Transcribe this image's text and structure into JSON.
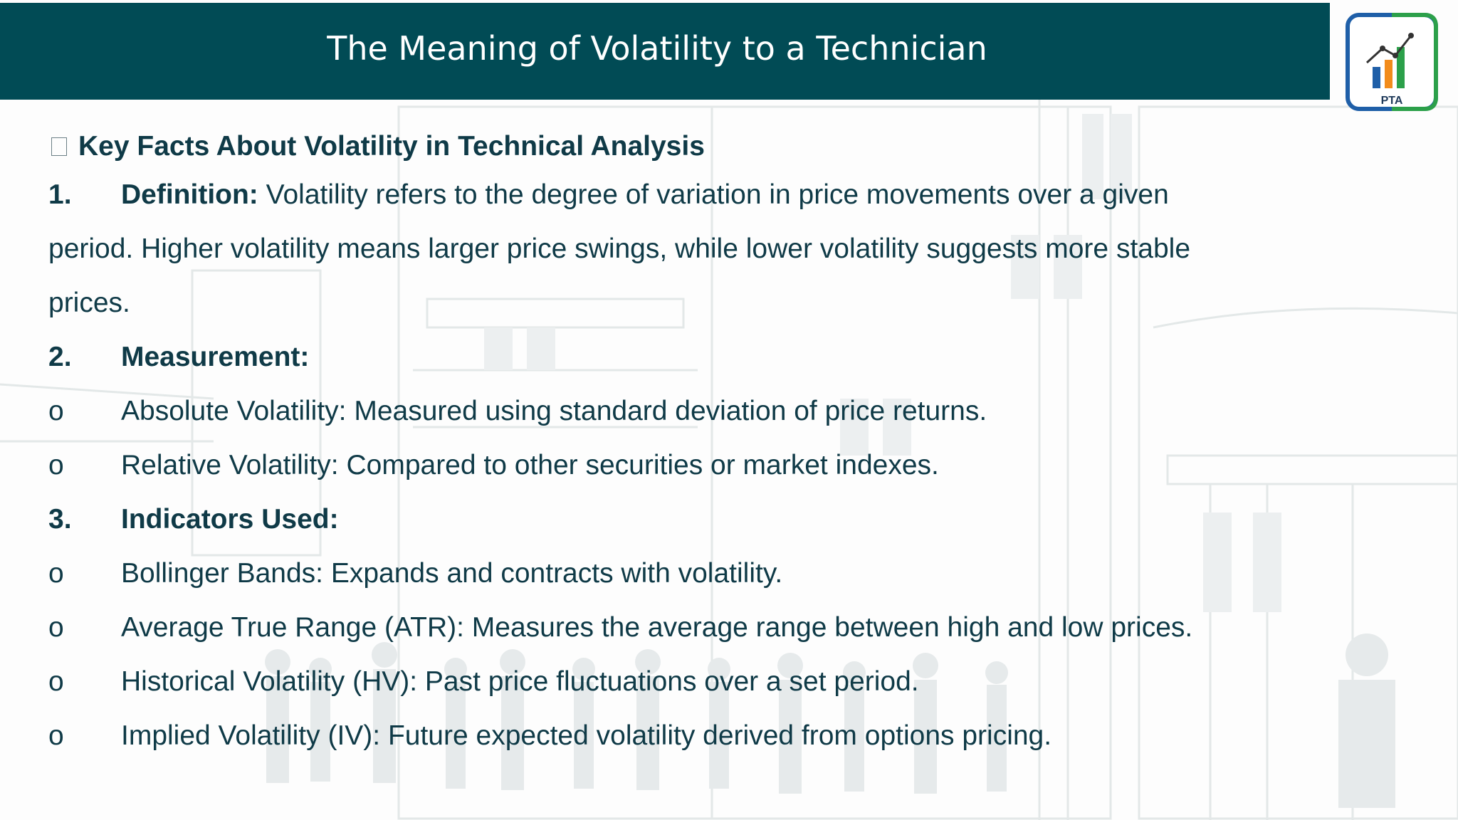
{
  "slide": {
    "title": "The Meaning of Volatility to a Technician",
    "logo_text": "PTA",
    "colors": {
      "header": "#014b55",
      "text": "#0f3a47",
      "logo_blue": "#1f5fa8",
      "logo_green": "#2ca04a",
      "logo_orange": "#f28c1c"
    }
  },
  "content": {
    "heading": "Key Facts About Volatility in Technical Analysis",
    "sections": [
      {
        "number": "1.",
        "label": "Definition:",
        "text_line1": " Volatility refers to the degree of variation in price movements over a given",
        "text_line2": "period. Higher volatility means larger price swings, while lower volatility suggests more stable",
        "text_line3": "prices."
      },
      {
        "number": "2.",
        "label": "Measurement:",
        "items": [
          {
            "marker": "o",
            "text": "Absolute Volatility: Measured using standard deviation of price returns."
          },
          {
            "marker": "o",
            "text": "Relative Volatility: Compared to other securities or market indexes."
          }
        ]
      },
      {
        "number": "3.",
        "label": "Indicators Used:",
        "items": [
          {
            "marker": "o",
            "text": "Bollinger Bands: Expands and contracts with volatility."
          },
          {
            "marker": "o",
            "text": "Average True Range (ATR): Measures the average range between high and low prices."
          },
          {
            "marker": "o",
            "text": "Historical Volatility (HV): Past price fluctuations over a set period."
          },
          {
            "marker": "o",
            "text": "Implied Volatility (IV): Future expected volatility derived from options pricing."
          }
        ]
      }
    ]
  }
}
